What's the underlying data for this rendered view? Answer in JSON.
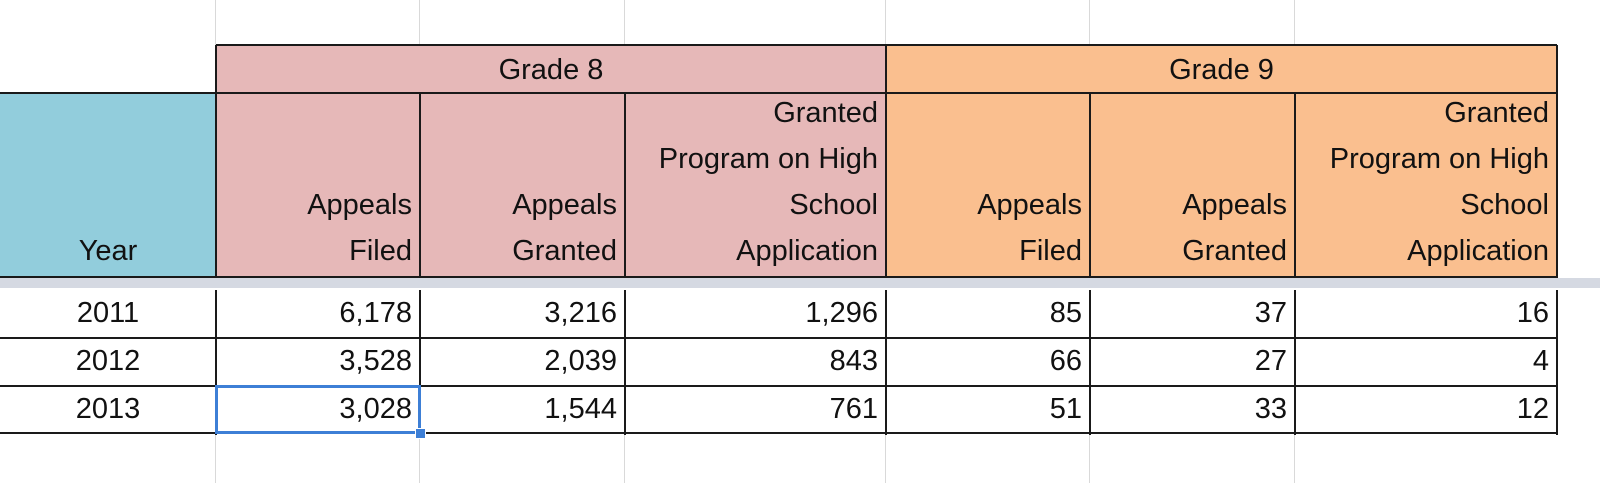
{
  "colors": {
    "grade8_fill": "#e6b8b8",
    "grade9_fill": "#fabf8f",
    "year_fill": "#92cddc",
    "selection": "#3d7fd6",
    "gridline": "#d9d9d9"
  },
  "header": {
    "groups": [
      {
        "label": "Grade 8"
      },
      {
        "label": "Grade 9"
      }
    ],
    "year_label": "Year",
    "columns": [
      {
        "lines": [
          "Appeals",
          "Filed"
        ]
      },
      {
        "lines": [
          "Appeals",
          "Granted"
        ]
      },
      {
        "lines": [
          "Granted",
          "Program on High",
          "School",
          "Application"
        ]
      },
      {
        "lines": [
          "Appeals",
          "Filed"
        ]
      },
      {
        "lines": [
          "Appeals",
          "Granted"
        ]
      },
      {
        "lines": [
          "Granted",
          "Program on High",
          "School",
          "Application"
        ]
      }
    ]
  },
  "rows": [
    {
      "year": "2011",
      "values": [
        "6,178",
        "3,216",
        "1,296",
        "85",
        "37",
        "16"
      ]
    },
    {
      "year": "2012",
      "values": [
        "3,528",
        "2,039",
        "843",
        "66",
        "27",
        "4"
      ]
    },
    {
      "year": "2013",
      "values": [
        "3,028",
        "1,544",
        "761",
        "51",
        "33",
        "12"
      ]
    }
  ],
  "selection": {
    "row_index": 2,
    "column_index": 0
  }
}
